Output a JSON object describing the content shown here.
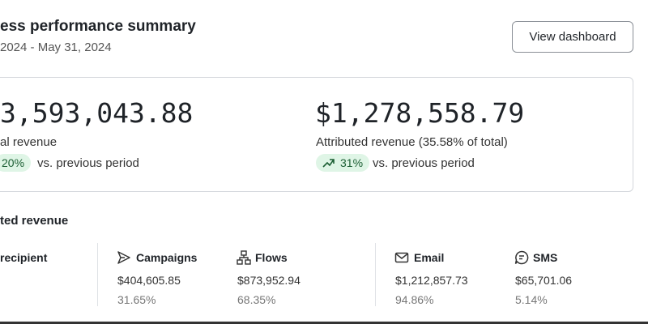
{
  "header": {
    "title": "ess performance summary",
    "date_range": "2024 - May 31, 2024",
    "button": "View dashboard"
  },
  "card": {
    "metrics": [
      {
        "value": "3,593,043.88",
        "label": "al revenue",
        "change": "20%",
        "comparison": "vs. previous period"
      },
      {
        "value": "$1,278,558.79",
        "label": "Attributed revenue (35.58% of total)",
        "change": "31%",
        "comparison": "vs. previous period"
      }
    ]
  },
  "section": {
    "title": "ted revenue",
    "group_label": "recipient",
    "channels": [
      {
        "name": "Campaigns",
        "amount": "$404,605.85",
        "share": "31.65%"
      },
      {
        "name": "Flows",
        "amount": "$873,952.94",
        "share": "68.35%"
      },
      {
        "name": "Email",
        "amount": "$1,212,857.73",
        "share": "94.86%"
      },
      {
        "name": "SMS",
        "amount": "$65,701.06",
        "share": "5.14%"
      }
    ]
  }
}
